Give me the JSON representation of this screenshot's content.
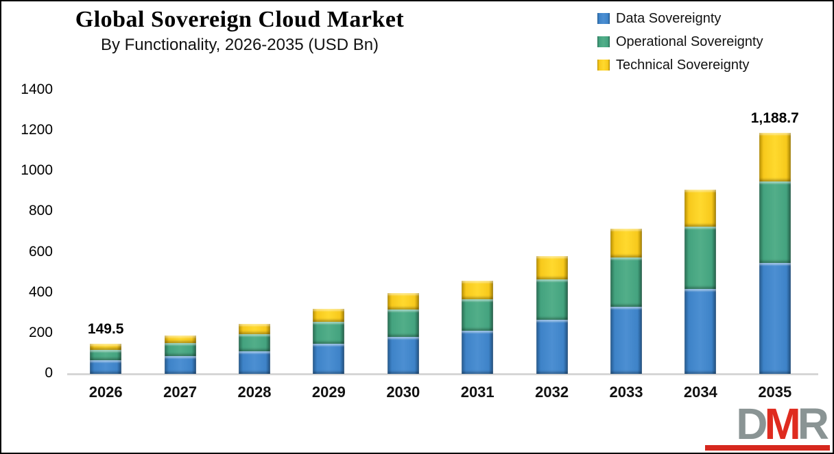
{
  "chart_data": {
    "type": "bar",
    "stacked": true,
    "title": "Global Sovereign Cloud Market",
    "subtitle": "By Functionality, 2026-2035 (USD Bn)",
    "categories": [
      "2026",
      "2027",
      "2028",
      "2029",
      "2030",
      "2031",
      "2032",
      "2033",
      "2034",
      "2035"
    ],
    "series": [
      {
        "name": "Data Sovereignty",
        "color": "#3579BE",
        "values": [
          68.8,
          86.6,
          113.0,
          147.4,
          183.0,
          212.0,
          267.5,
          330.0,
          418.3,
          546.8
        ]
      },
      {
        "name": "Operational Sovereignty",
        "color": "#44A37F",
        "values": [
          50.8,
          64.0,
          83.5,
          109.0,
          135.3,
          156.7,
          197.8,
          243.9,
          309.2,
          404.2
        ]
      },
      {
        "name": "Technical Sovereignty",
        "color": "#F7C91C",
        "values": [
          29.9,
          37.6,
          49.1,
          64.1,
          79.5,
          92.2,
          116.3,
          143.4,
          181.9,
          237.7
        ]
      }
    ],
    "totals": [
      149.5,
      188.2,
      245.6,
      320.5,
      397.8,
      460.9,
      581.6,
      717.3,
      909.4,
      1188.7
    ],
    "annotations": [
      {
        "category": "2026",
        "text": "149.5"
      },
      {
        "category": "2035",
        "text": "1,188.7"
      }
    ],
    "ylim": [
      0,
      1400
    ],
    "yticks": [
      0,
      200,
      400,
      600,
      800,
      1000,
      1200,
      1400
    ],
    "xlabel": "",
    "ylabel": "",
    "grid": false,
    "legend_position": "top-right",
    "axis_line_color": "#D6D6D6"
  },
  "logo": {
    "letters": [
      "D",
      "M",
      "R"
    ],
    "grey_color": "#8A9494",
    "red_color": "#DF2B1F",
    "bar_color": "#D6281E"
  }
}
